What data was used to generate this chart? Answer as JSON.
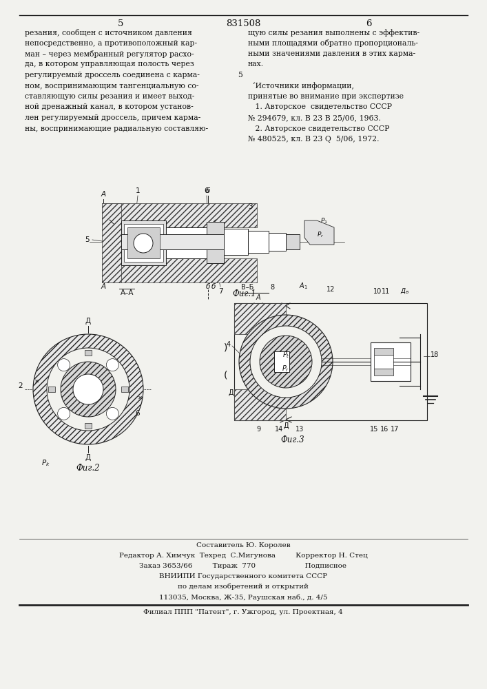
{
  "page_number_left": "5",
  "page_number_center": "831508",
  "page_number_right": "6",
  "col_left_text": [
    "резания, сообщен с источником давления",
    "непосредственно, а противоположный кар-",
    "ман – через мембранный регулятор расхо-",
    "да, в котором управляющая полость через",
    "регулируемый дроссель соединена с карма-",
    "ном, воспринимающим тангенциальную со-",
    "ставляющую силы резания и имеет выход-",
    "ной дренажный канал, в котором установ-",
    "лен регулируемый дроссель, причем карма-",
    "ны, воспринимающие радиальную составляю-"
  ],
  "col_right_text": [
    "щую силы резания выполнены с эффектив-",
    "ными площадями обратно пропорциональ-",
    "ными значениями давления в этих карма-",
    "нах.",
    "",
    "  ‘Источники информации,",
    "принятые во внимание при экспертизе",
    "   1. Авторское  свидетельство СССР",
    "№ 294679, кл. В 23 В 25/06, 1963.",
    "   2. Авторское свидетельство СССР",
    "№ 480525, кл. В 23 Q  5/06, 1972."
  ],
  "footer_lines": [
    "Составитель Ю. Королев",
    "Редактор А. Химчук  Техред  С.Мигунова         Корректор Н. Стец",
    "Заказ 3653/66         Тираж  770                      Подписное",
    "ВНИИПИ Государственного комитета СССР",
    "по делам изобретений и открытий",
    "113035, Москва, Ж-35, Раушская наб., д. 4/5",
    "Филиал ППП \"Патент\", г. Ужгород, ул. Проектная, 4"
  ],
  "bg_color": "#f2f2ee",
  "text_color": "#111111",
  "line_color": "#222222",
  "fig_label1": "Фиг.1",
  "fig_label2": "Фиг.2",
  "fig_label3": "Фиг.3"
}
